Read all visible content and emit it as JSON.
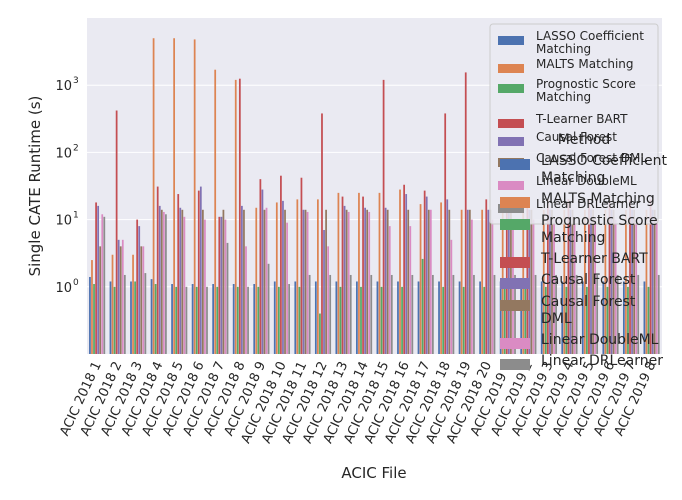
{
  "chart_data": {
    "type": "bar",
    "xlabel": "ACIC File",
    "ylabel": "Single CATE Runtime (s)",
    "yscale": "log",
    "ylim": [
      0.1,
      10000
    ],
    "yticks": [
      {
        "value": 1,
        "label": "10",
        "exp": "0"
      },
      {
        "value": 10,
        "label": "10",
        "exp": "1"
      },
      {
        "value": 100,
        "label": "10",
        "exp": "2"
      },
      {
        "value": 1000,
        "label": "10",
        "exp": "3"
      }
    ],
    "grid": true,
    "categories": [
      "ACIC 2018 1",
      "ACIC 2018 2",
      "ACIC 2018 3",
      "ACIC 2018 4",
      "ACIC 2018 5",
      "ACIC 2018 6",
      "ACIC 2018 7",
      "ACIC 2018 8",
      "ACIC 2018 9",
      "ACIC 2018 10",
      "ACIC 2018 11",
      "ACIC 2018 12",
      "ACIC 2018 13",
      "ACIC 2018 14",
      "ACIC 2018 15",
      "ACIC 2018 16",
      "ACIC 2018 17",
      "ACIC 2018 18",
      "ACIC 2018 19",
      "ACIC 2018 20",
      "ACIC 2019 1",
      "ACIC 2019 2",
      "ACIC 2019 3",
      "ACIC 2019 4",
      "ACIC 2019 5",
      "ACIC 2019 6",
      "ACIC 2019 7",
      "ACIC 2019 8"
    ],
    "series": [
      {
        "name": "LASSO Coefficient Matching",
        "color": "#4c72b0",
        "values": [
          1.4,
          1.2,
          1.2,
          1.3,
          1.1,
          1.1,
          1.1,
          1.1,
          1.1,
          1.2,
          1.2,
          1.2,
          1.2,
          1.2,
          1.2,
          1.2,
          1.2,
          1.2,
          1.2,
          1.2,
          1.2,
          1.2,
          1.2,
          1.2,
          1.2,
          1.2,
          1.2,
          1.2
        ]
      },
      {
        "name": "MALTS Matching",
        "color": "#dd8452",
        "values": [
          2.5,
          3.0,
          3.0,
          5000,
          5000,
          4800,
          1700,
          1200,
          15,
          18,
          20,
          20,
          25,
          25,
          25,
          28,
          17,
          18,
          14,
          14,
          14,
          14,
          14,
          14,
          14,
          14,
          14,
          14
        ]
      },
      {
        "name": "Prognostic Score Matching",
        "color": "#55a868",
        "values": [
          1.1,
          1.0,
          1.2,
          1.1,
          1.0,
          1.0,
          1.0,
          1.0,
          1.0,
          1.0,
          1.0,
          0.4,
          1.0,
          1.0,
          1.0,
          1.0,
          2.6,
          1.0,
          1.0,
          1.0,
          1.0,
          1.0,
          1.0,
          1.0,
          1.0,
          1.0,
          1.0,
          1.0
        ]
      },
      {
        "name": "T-Learner BART",
        "color": "#c44e52",
        "values": [
          18,
          420,
          10,
          31,
          24,
          27,
          11,
          1250,
          40,
          45,
          42,
          380,
          22,
          22,
          1200,
          33,
          27,
          380,
          1550,
          20,
          20,
          20,
          20,
          20,
          20,
          20,
          20,
          20
        ]
      },
      {
        "name": "Causal Forest",
        "color": "#8172b3",
        "values": [
          16,
          5,
          8,
          16,
          15,
          31,
          11,
          16,
          28,
          19,
          14,
          7,
          16,
          15,
          15,
          24,
          22,
          20,
          14,
          14,
          14,
          14,
          14,
          14,
          14,
          14,
          14,
          14
        ]
      },
      {
        "name": "Causal Forest DML",
        "color": "#937860",
        "values": [
          4,
          4,
          4,
          14,
          14,
          14,
          14,
          14,
          14,
          14,
          14,
          14,
          14,
          14,
          14,
          14,
          14,
          14,
          14,
          14,
          14,
          14,
          14,
          14,
          14,
          14,
          14,
          14
        ]
      },
      {
        "name": "Linear DoubleML",
        "color": "#da8bc3",
        "values": [
          12,
          5,
          4,
          13,
          11,
          10,
          10,
          4,
          15,
          9,
          13,
          4,
          13,
          13,
          8,
          8,
          14,
          5,
          10,
          10,
          10,
          10,
          10,
          10,
          10,
          10,
          10,
          10
        ]
      },
      {
        "name": "Linear DRLearner",
        "color": "#8c8c8c",
        "values": [
          11,
          1.5,
          1.6,
          12,
          1.0,
          1.0,
          4.5,
          1.0,
          2.2,
          1.1,
          1.5,
          1.5,
          1.5,
          1.5,
          1.5,
          1.5,
          1.5,
          1.5,
          1.5,
          1.5,
          1.5,
          1.5,
          1.5,
          1.5,
          1.5,
          1.5,
          1.5,
          1.5
        ]
      }
    ],
    "legend": {
      "placement": "top-right",
      "entries": [
        {
          "label": "LASSO Coefficient Matching",
          "color": "#4c72b0"
        },
        {
          "label": "MALTS Matching",
          "color": "#dd8452"
        },
        {
          "label": "Prognostic Score Matching",
          "color": "#55a868"
        },
        {
          "label": "T-Learner BART",
          "color": "#c44e52"
        },
        {
          "label": "Causal Forest",
          "color": "#8172b3"
        },
        {
          "label": "Causal Forest DML",
          "color": "#937860"
        },
        {
          "label": "Linear DoubleML",
          "color": "#da8bc3"
        },
        {
          "label": "Linear DRLearner",
          "color": "#8c8c8c"
        }
      ]
    },
    "legend2": {
      "title": "Method",
      "entries": [
        {
          "label": "LASSO Coefficient Matching",
          "color": "#4c72b0"
        },
        {
          "label": "MALTS Matching",
          "color": "#dd8452"
        },
        {
          "label": "Prognostic Score Matching",
          "color": "#55a868"
        },
        {
          "label": "T-Learner BART",
          "color": "#c44e52"
        },
        {
          "label": "Causal Forest",
          "color": "#8172b3"
        },
        {
          "label": "Causal Forest DML",
          "color": "#937860"
        },
        {
          "label": "Linear DoubleML",
          "color": "#da8bc3"
        },
        {
          "label": "Linear DRLearner",
          "color": "#8c8c8c"
        }
      ]
    }
  }
}
